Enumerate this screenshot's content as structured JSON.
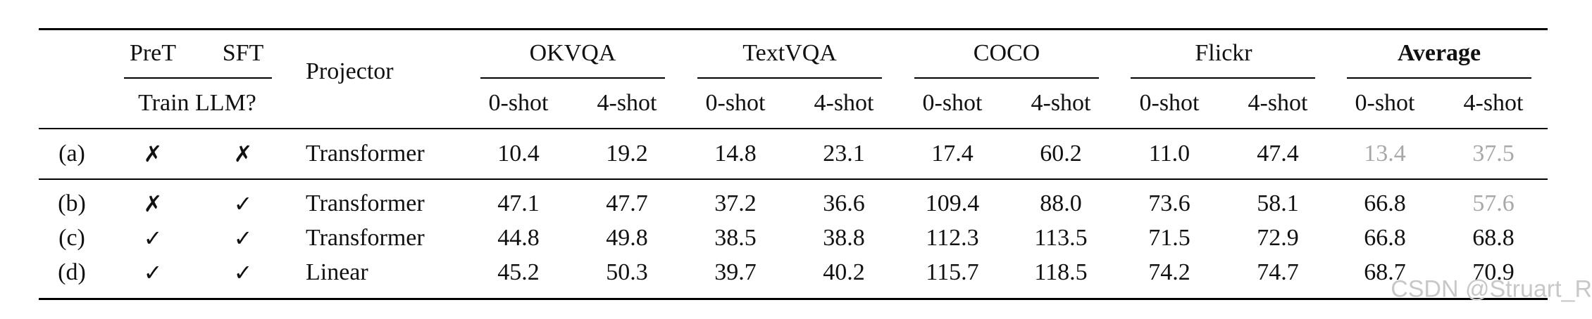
{
  "header": {
    "pret": "PreT",
    "sft": "SFT",
    "train_llm": "Train LLM?",
    "projector": "Projector",
    "groups": [
      {
        "label": "OKVQA",
        "bold": false
      },
      {
        "label": "TextVQA",
        "bold": false
      },
      {
        "label": "COCO",
        "bold": false
      },
      {
        "label": "Flickr",
        "bold": false
      },
      {
        "label": "Average",
        "bold": true
      }
    ],
    "shots": [
      "0-shot",
      "4-shot"
    ]
  },
  "rows": [
    {
      "id": "(a)",
      "pret": "✗",
      "sft": "✗",
      "projector": "Transformer",
      "values": [
        "10.4",
        "19.2",
        "14.8",
        "23.1",
        "17.4",
        "60.2",
        "11.0",
        "47.4",
        "13.4",
        "37.5"
      ],
      "faded": [
        false,
        false,
        false,
        false,
        false,
        false,
        false,
        false,
        true,
        true
      ]
    },
    {
      "id": "(b)",
      "pret": "✗",
      "sft": "✓",
      "projector": "Transformer",
      "values": [
        "47.1",
        "47.7",
        "37.2",
        "36.6",
        "109.4",
        "88.0",
        "73.6",
        "58.1",
        "66.8",
        "57.6"
      ],
      "faded": [
        false,
        false,
        false,
        false,
        false,
        false,
        false,
        false,
        false,
        true
      ]
    },
    {
      "id": "(c)",
      "pret": "✓",
      "sft": "✓",
      "projector": "Transformer",
      "values": [
        "44.8",
        "49.8",
        "38.5",
        "38.8",
        "112.3",
        "113.5",
        "71.5",
        "72.9",
        "66.8",
        "68.8"
      ],
      "faded": [
        false,
        false,
        false,
        false,
        false,
        false,
        false,
        false,
        false,
        false
      ]
    },
    {
      "id": "(d)",
      "pret": "✓",
      "sft": "✓",
      "projector": "Linear",
      "values": [
        "45.2",
        "50.3",
        "39.7",
        "40.2",
        "115.7",
        "118.5",
        "74.2",
        "74.7",
        "68.7",
        "70.9"
      ],
      "faded": [
        false,
        false,
        false,
        false,
        false,
        false,
        false,
        false,
        false,
        false
      ]
    }
  ],
  "watermark": "CSDN @Struart_R"
}
